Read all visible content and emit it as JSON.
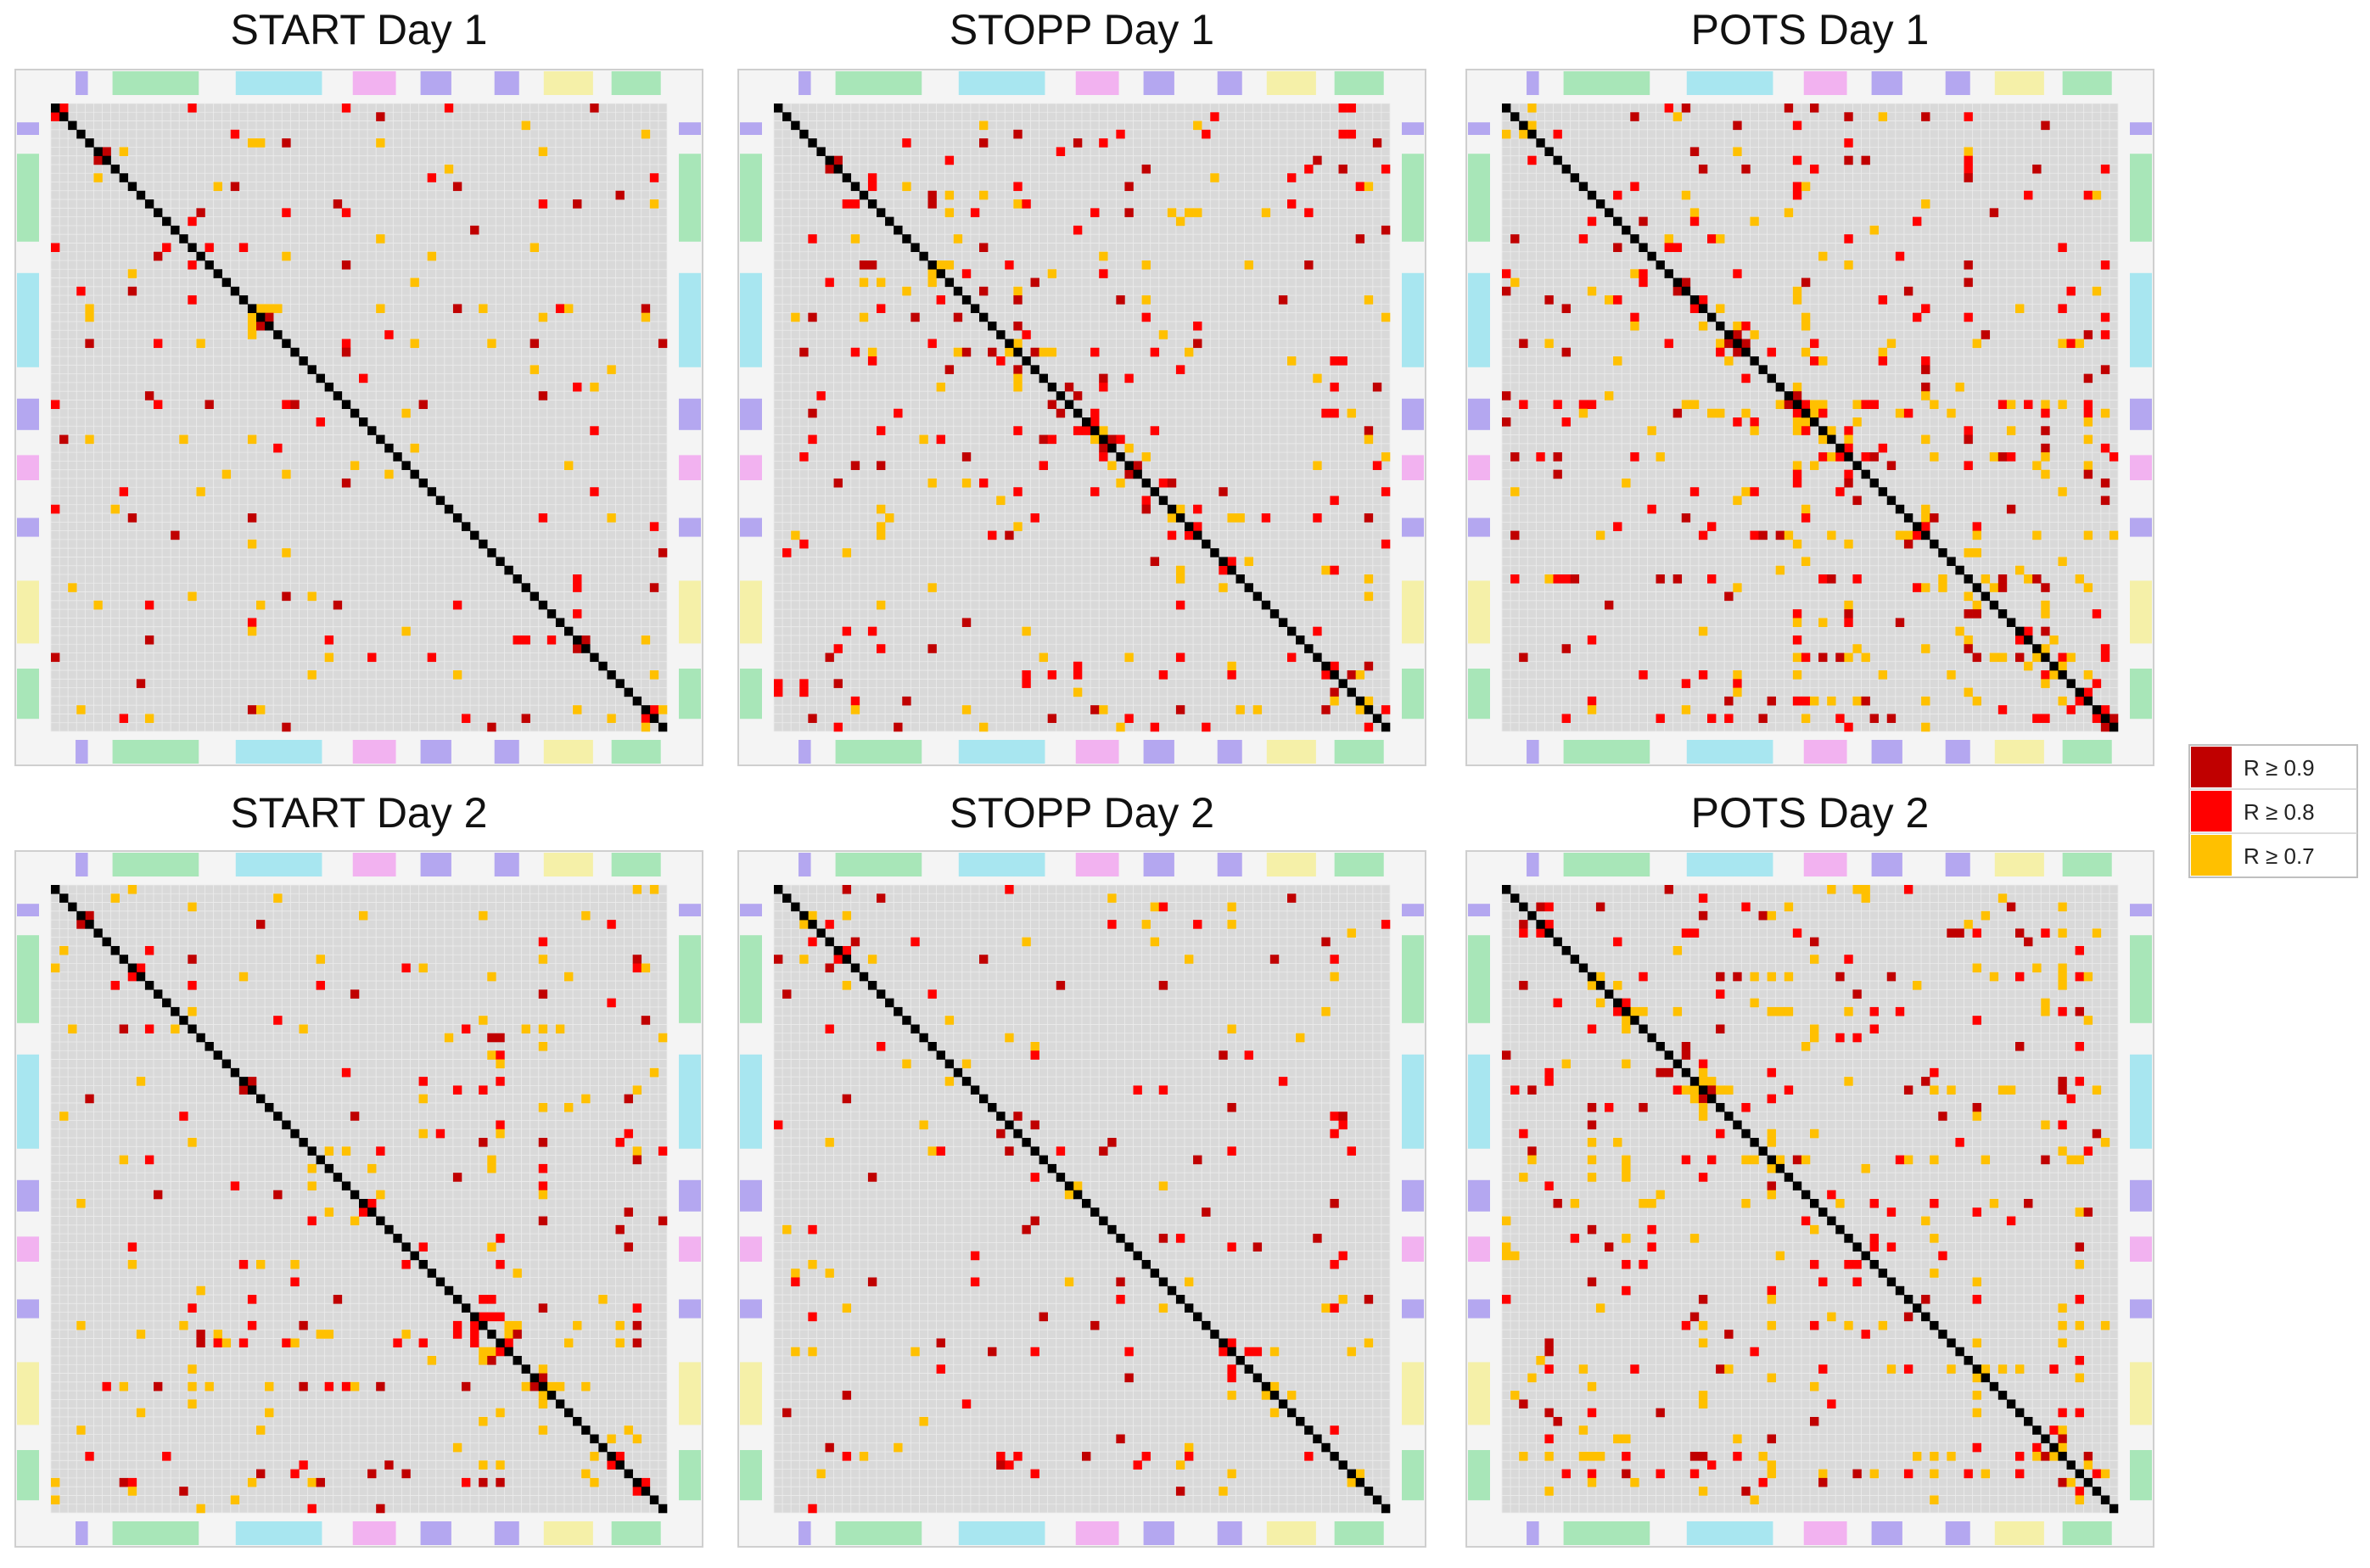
{
  "chart_data": {
    "type": "heatmap",
    "description_values": "Correlation matrices thresholded by R; cell colors encode correlation strength categories",
    "panels": [
      {
        "title": "START Day 1"
      },
      {
        "title": "STOPP Day 1"
      },
      {
        "title": "POTS Day 1"
      },
      {
        "title": "START Day 2"
      },
      {
        "title": "STOPP Day 2"
      },
      {
        "title": "POTS Day 2"
      }
    ],
    "legend": {
      "placement": "right-middle",
      "entries": [
        {
          "label": "R ≥ 0.9",
          "color": "#c00000"
        },
        {
          "label": "R ≥ 0.8",
          "color": "#ff0000"
        },
        {
          "label": "R ≥ 0.7",
          "color": "#ffc000"
        }
      ]
    },
    "colors": {
      "cell_background": "#d9d9d9",
      "diagonal": "#000000",
      "group_band_colors": [
        "#b4a7f0",
        "#a8e6b8",
        "#a8e6f0",
        "#f2b2f0",
        "#f5f0a8"
      ]
    }
  }
}
